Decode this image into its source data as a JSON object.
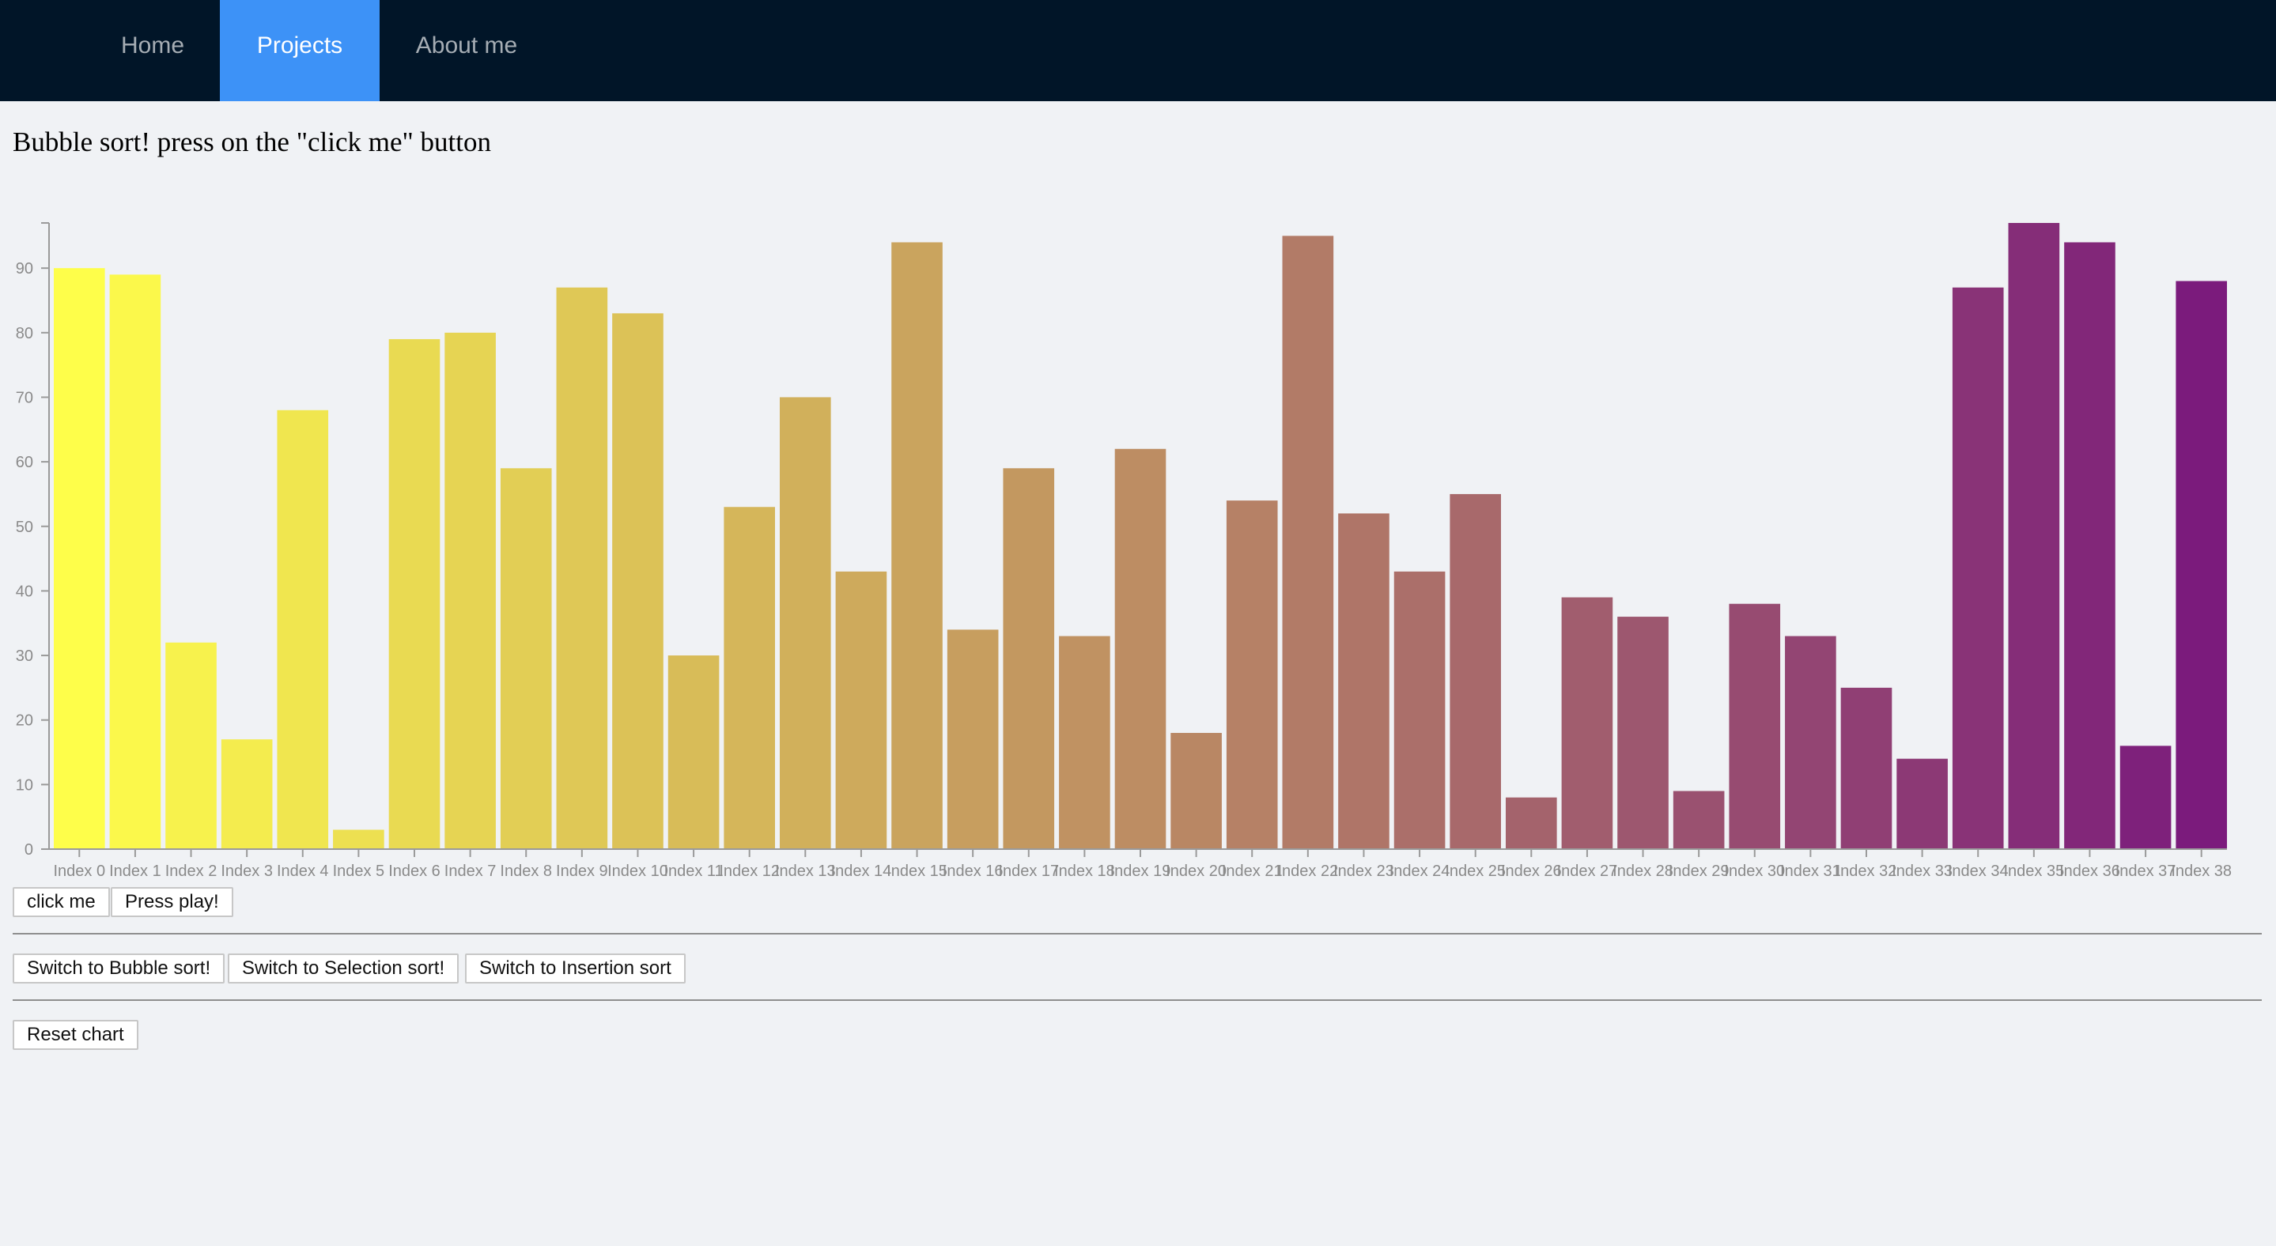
{
  "nav": {
    "items": [
      {
        "label": "Home",
        "active": false
      },
      {
        "label": "Projects",
        "active": true
      },
      {
        "label": "About me",
        "active": false
      }
    ]
  },
  "title": "Bubble sort! press on the \"click me\" button",
  "chart_data": {
    "type": "bar",
    "categories": [
      "Index 0",
      "Index 1",
      "Index 2",
      "Index 3",
      "Index 4",
      "Index 5",
      "Index 6",
      "Index 7",
      "Index 8",
      "Index 9",
      "Index 10",
      "Index 11",
      "Index 12",
      "Index 13",
      "Index 14",
      "Index 15",
      "Index 16",
      "Index 17",
      "Index 18",
      "Index 19",
      "Index 20",
      "Index 21",
      "Index 22",
      "Index 23",
      "Index 24",
      "Index 25",
      "Index 26",
      "Index 27",
      "Index 28",
      "Index 29",
      "Index 30",
      "Index 31",
      "Index 32",
      "Index 33",
      "Index 34",
      "Index 35",
      "Index 36",
      "Index 37",
      "Index 38"
    ],
    "values": [
      90,
      89,
      32,
      17,
      68,
      3,
      79,
      80,
      59,
      87,
      83,
      30,
      53,
      70,
      43,
      94,
      34,
      59,
      33,
      62,
      18,
      54,
      95,
      52,
      43,
      55,
      8,
      39,
      36,
      9,
      38,
      33,
      25,
      14,
      87,
      97,
      94,
      16,
      88
    ],
    "ylim": [
      0,
      97
    ],
    "yticks": [
      0,
      10,
      20,
      30,
      40,
      50,
      60,
      70,
      80,
      90
    ],
    "color_start": "#fefe4a",
    "color_end": "#7b1b7c",
    "title": "",
    "xlabel": "",
    "ylabel": ""
  },
  "controls": {
    "click_me": "click me",
    "press_play": "Press play!",
    "switch_bubble": "Switch to Bubble sort!",
    "switch_selection": "Switch to Selection sort!",
    "switch_insertion": "Switch to Insertion sort",
    "reset": "Reset chart"
  }
}
